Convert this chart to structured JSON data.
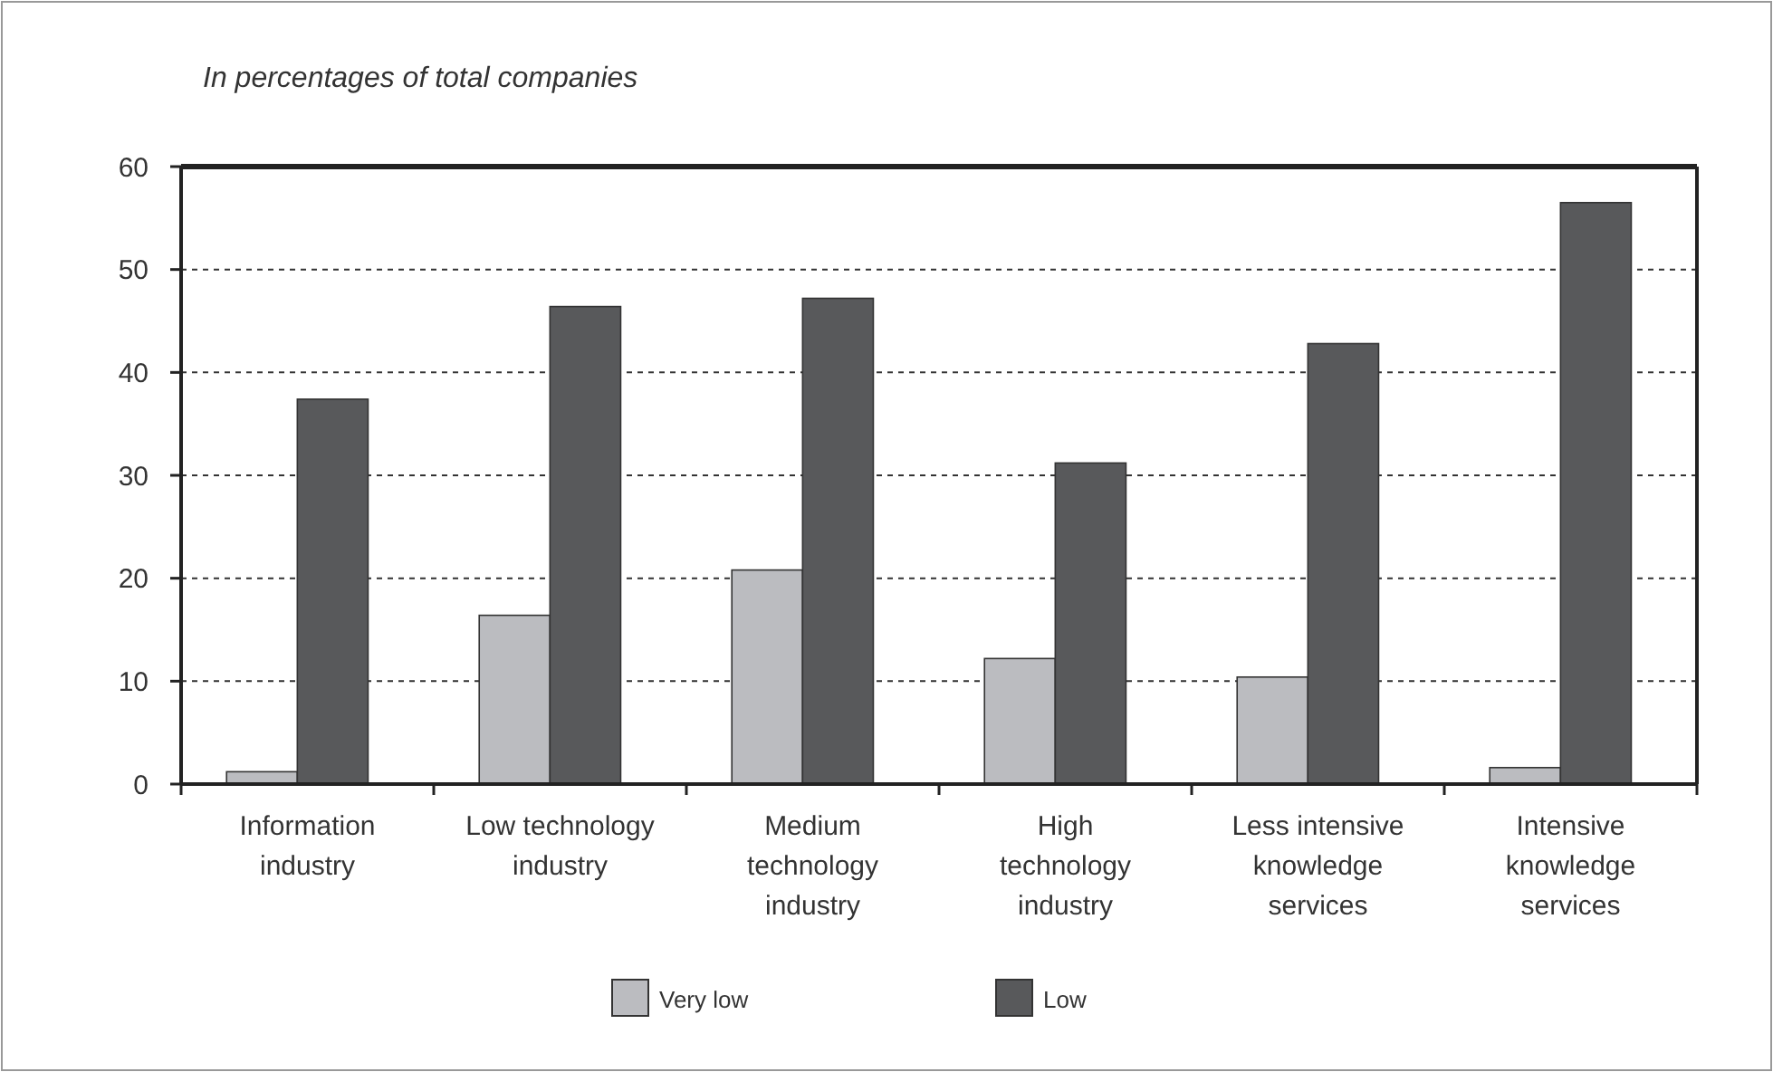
{
  "chart_data": {
    "type": "bar",
    "title": "In percentages of total companies",
    "categories": [
      "Information industry",
      "Low technology industry",
      "Medium technology industry",
      "High technology industry",
      "Less intensive knowledge services",
      "Intensive knowledge services"
    ],
    "series": [
      {
        "name": "Very low",
        "color": "#bbbcc0",
        "values": [
          1.2,
          16.4,
          20.8,
          12.2,
          10.4,
          1.6
        ]
      },
      {
        "name": "Low",
        "color": "#58595b",
        "values": [
          37.4,
          46.4,
          47.2,
          31.2,
          42.8,
          56.5
        ]
      }
    ],
    "ylim": [
      0,
      60
    ],
    "yticks": [
      0,
      10,
      20,
      30,
      40,
      50,
      60
    ],
    "grid": "y",
    "legend": "bottom"
  }
}
